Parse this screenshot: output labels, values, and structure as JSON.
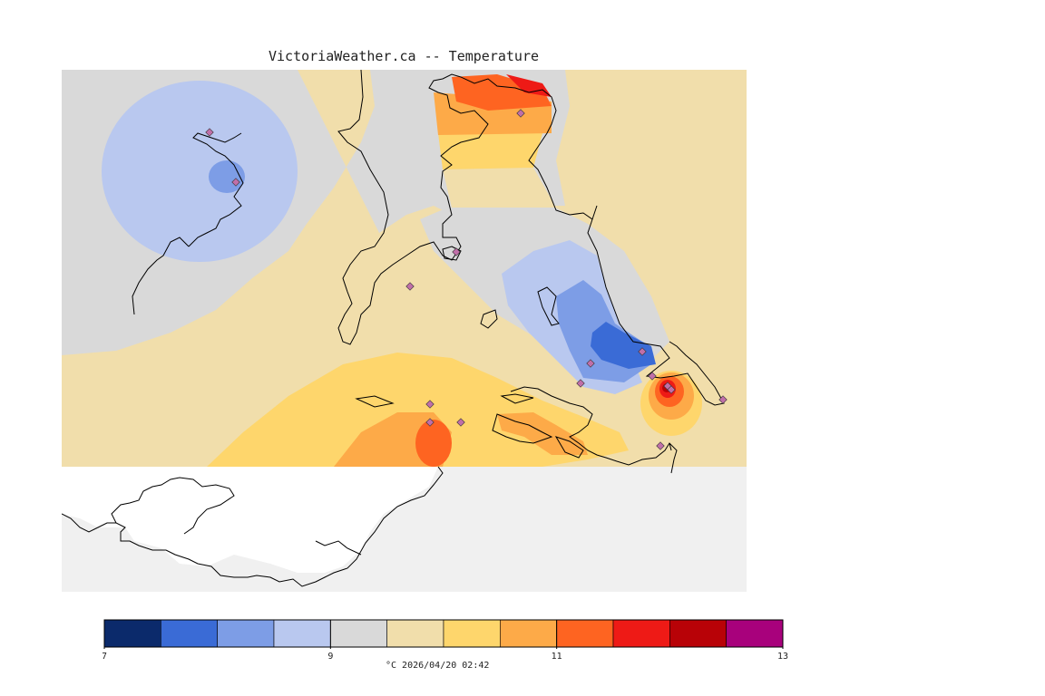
{
  "title": "VictoriaWeather.ca -- Temperature",
  "colors": {
    "water": "#f0f0f0",
    "land_outside": "#ffffff",
    "coast": "#000000",
    "station": "#c06fa8"
  },
  "legend": {
    "colors": [
      "#0b2a6b",
      "#3a6bd6",
      "#7d9de6",
      "#b9c8ef",
      "#d9d9d9",
      "#f1deab",
      "#fed66c",
      "#fdaa48",
      "#fe6421",
      "#ee1a16",
      "#b80207",
      "#a8017c"
    ],
    "ticks": [
      "7",
      "9",
      "11",
      "13"
    ],
    "tick_positions_index": [
      0,
      4,
      8,
      12
    ],
    "units_and_time": "°C  2026/04/20 02:42"
  },
  "stations": 16
}
